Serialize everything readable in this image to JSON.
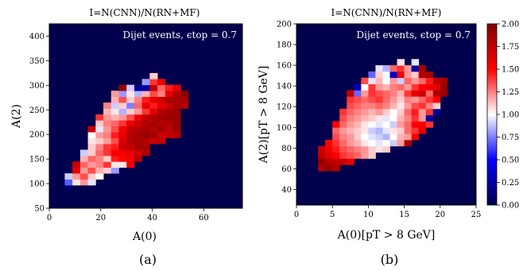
{
  "figure": {
    "captions": [
      "(a)",
      "(b)"
    ]
  },
  "colorbar": {
    "cmap": "seismic",
    "range": [
      0.0,
      2.0
    ],
    "ticks": [
      "0.00",
      "0.25",
      "0.50",
      "0.75",
      "1.00",
      "1.25",
      "1.50",
      "1.75",
      "2.00"
    ]
  },
  "chart_data": [
    {
      "type": "heatmap",
      "title": "I=N(CNN)/N(RN+MF)",
      "annotation": "Dijet events, ϵtop = 0.7",
      "xlabel": "A(0)",
      "ylabel": "A(2)",
      "xlim": [
        0,
        75
      ],
      "ylim": [
        50,
        425
      ],
      "xticks": [
        0,
        20,
        40,
        60
      ],
      "yticks": [
        50,
        100,
        150,
        200,
        250,
        300,
        350,
        400
      ],
      "background_value": 0.0,
      "bins": {
        "x0": 6,
        "dx": 3,
        "y0": 85,
        "dy": 12,
        "values": [
          [
            0.08
          ],
          [
            0.68,
            1.05,
            1.2,
            0.95
          ],
          [
            0.9,
            1.2,
            1.35,
            1.1,
            1.0
          ],
          [
            null,
            1.6,
            1.2,
            1.35,
            1.15,
            1.1,
            0.8
          ],
          [
            null,
            1.7,
            1.3,
            1.2,
            1.25,
            1.4,
            1.05,
            1.05,
            1.55
          ],
          [
            null,
            null,
            1.15,
            1.3,
            1.25,
            1.1,
            1.45,
            1.5,
            1.55,
            1.8
          ],
          [
            null,
            null,
            0.9,
            1.1,
            1.3,
            1.4,
            1.55,
            1.55,
            1.6,
            1.7,
            1.8
          ],
          [
            null,
            null,
            null,
            1.1,
            1.25,
            1.4,
            1.45,
            1.7,
            1.75,
            1.85,
            1.85
          ],
          [
            null,
            null,
            null,
            1.05,
            1.1,
            1.2,
            1.35,
            1.65,
            1.8,
            1.85,
            1.8,
            1.7,
            1.75
          ],
          [
            null,
            null,
            null,
            1.0,
            1.2,
            1.25,
            1.45,
            1.6,
            1.8,
            1.85,
            1.9,
            1.85,
            1.7,
            1.75,
            1.8
          ],
          [
            null,
            null,
            null,
            1.7,
            0.95,
            1.2,
            1.35,
            1.55,
            1.75,
            1.8,
            1.85,
            1.8,
            1.85,
            1.75,
            1.9
          ],
          [
            null,
            null,
            null,
            null,
            1.1,
            1.25,
            1.3,
            1.4,
            1.6,
            1.7,
            1.8,
            1.85,
            1.8,
            1.8,
            1.9
          ],
          [
            null,
            null,
            null,
            null,
            1.4,
            1.2,
            1.15,
            1.2,
            1.35,
            1.55,
            1.75,
            1.8,
            1.85,
            1.9,
            1.9
          ],
          [
            null,
            null,
            null,
            null,
            null,
            1.15,
            1.05,
            0.85,
            1.1,
            1.2,
            1.4,
            1.6,
            1.8,
            1.85,
            1.9
          ],
          [
            null,
            null,
            null,
            null,
            null,
            1.25,
            0.9,
            1.1,
            0.75,
            1.3,
            1.6,
            1.45,
            1.6,
            1.7,
            1.85,
            1.8
          ],
          [
            null,
            null,
            null,
            null,
            null,
            null,
            1.15,
            1.35,
            1.1,
            1.25,
            1.45,
            1.6,
            1.7,
            1.85,
            1.85,
            1.85
          ],
          [
            null,
            null,
            null,
            null,
            null,
            null,
            1.2,
            0.8,
            1.05,
            0.85,
            1.15,
            1.35,
            1.25,
            1.6,
            1.8,
            1.95
          ],
          [
            null,
            null,
            null,
            null,
            null,
            null,
            null,
            1.9,
            0.9,
            0.2,
            0.25,
            1.75,
            1.3,
            1.45,
            1.6
          ],
          [
            null,
            null,
            null,
            null,
            null,
            null,
            null,
            null,
            null,
            null,
            0.8,
            1.4,
            1.55
          ],
          [
            null,
            null,
            null,
            null,
            null,
            null,
            null,
            null,
            null,
            null,
            null,
            1.1
          ],
          [
            null,
            null,
            null,
            null,
            null,
            null,
            null,
            null,
            null,
            null,
            null,
            null,
            null
          ],
          [
            null,
            null,
            null,
            null,
            null,
            null,
            null,
            null,
            null,
            null,
            null,
            null,
            null
          ],
          [
            null,
            null,
            null,
            null,
            null,
            null,
            null,
            null,
            null,
            null,
            null,
            null,
            null
          ],
          [
            null,
            null,
            null,
            null,
            null,
            null,
            null,
            null,
            null,
            null,
            null,
            null,
            null
          ],
          [
            null,
            null,
            null,
            null,
            null,
            null,
            null,
            null,
            null,
            null,
            null,
            null,
            null
          ],
          [
            null,
            null,
            null,
            null,
            null,
            null,
            null,
            null,
            null,
            null,
            null,
            null,
            null
          ]
        ]
      }
    },
    {
      "type": "heatmap",
      "title": "I=N(CNN)/N(RN+MF)",
      "annotation": "Dijet events, ϵtop = 0.7",
      "xlabel": "A(0)[pT > 8 GeV]",
      "ylabel": "A(2)[pT > 8 GeV]",
      "xlim": [
        0,
        25
      ],
      "ylim": [
        25,
        200
      ],
      "xticks": [
        0,
        5,
        10,
        15,
        20,
        25
      ],
      "yticks": [
        40,
        60,
        80,
        100,
        120,
        140,
        160,
        180,
        200
      ],
      "background_value": 0.0,
      "bins": {
        "x0": 3,
        "dx": 1,
        "y0": 58,
        "dy": 6,
        "values": [
          [
            1.8,
            1.9,
            1.8
          ],
          [
            1.9,
            1.8,
            1.75,
            1.7,
            1.6
          ],
          [
            1.75,
            1.6,
            1.5,
            1.4,
            1.35,
            1.3,
            1.2,
            1.1
          ],
          [
            1.7,
            1.55,
            1.45,
            1.35,
            1.3,
            1.25,
            1.2,
            1.1,
            1.05,
            1.1
          ],
          [
            null,
            1.5,
            1.4,
            1.3,
            1.2,
            1.15,
            1.05,
            1.0,
            0.95,
            1.0,
            0.9,
            1.2,
            1.85
          ],
          [
            null,
            null,
            1.35,
            1.25,
            1.2,
            1.1,
            1.0,
            0.95,
            0.9,
            0.85,
            1.0,
            1.15,
            1.2,
            1.5
          ],
          [
            null,
            null,
            1.3,
            1.2,
            1.15,
            1.1,
            1.05,
            0.9,
            0.85,
            0.95,
            1.05,
            1.1,
            1.3,
            1.4,
            1.6
          ],
          [
            null,
            null,
            1.5,
            1.3,
            1.2,
            1.15,
            1.05,
            1.0,
            0.95,
            1.0,
            0.9,
            1.2,
            1.3,
            1.5,
            1.55,
            1.4
          ],
          [
            null,
            null,
            null,
            1.35,
            1.25,
            1.2,
            1.15,
            1.1,
            1.05,
            0.95,
            1.0,
            1.15,
            1.25,
            1.4,
            1.2,
            0.25
          ],
          [
            null,
            null,
            null,
            1.4,
            1.3,
            1.25,
            1.2,
            1.15,
            1.2,
            1.1,
            1.0,
            1.1,
            1.3,
            1.45,
            1.2,
            1.4,
            0.2
          ],
          [
            null,
            null,
            null,
            null,
            1.35,
            1.3,
            1.25,
            1.25,
            1.3,
            1.25,
            1.15,
            1.05,
            1.2,
            1.35,
            1.4,
            1.25,
            1.1
          ],
          [
            null,
            null,
            null,
            null,
            1.4,
            1.35,
            1.3,
            1.35,
            1.4,
            1.3,
            1.2,
            1.1,
            1.25,
            1.2,
            1.3,
            1.4,
            1.5
          ],
          [
            null,
            null,
            null,
            null,
            1.75,
            0.7,
            1.2,
            1.4,
            1.35,
            1.3,
            1.25,
            1.15,
            1.4,
            1.6,
            1.7,
            1.3,
            1.8,
            1.9
          ],
          [
            null,
            null,
            null,
            null,
            null,
            0.3,
            1.0,
            1.4,
            1.2,
            1.15,
            1.25,
            1.3,
            1.2,
            1.4,
            1.5,
            1.55,
            1.6,
            1.9
          ],
          [
            null,
            null,
            null,
            null,
            null,
            null,
            1.35,
            0.95,
            1.15,
            1.0,
            1.2,
            0.9,
            1.3,
            1.2,
            1.3,
            1.45,
            1.75,
            1.85
          ],
          [
            null,
            null,
            null,
            null,
            null,
            null,
            null,
            0.7,
            1.1,
            1.0,
            0.35,
            1.55,
            1.2,
            1.1,
            1.8,
            1.85
          ],
          [
            null,
            null,
            null,
            null,
            null,
            null,
            null,
            null,
            0.95,
            0.85,
            1.3,
            1.4,
            1.2,
            0.25,
            1.85
          ],
          [
            null,
            null,
            null,
            null,
            null,
            null,
            null,
            null,
            null,
            null,
            null,
            1.05,
            null,
            0.95
          ]
        ]
      }
    }
  ]
}
